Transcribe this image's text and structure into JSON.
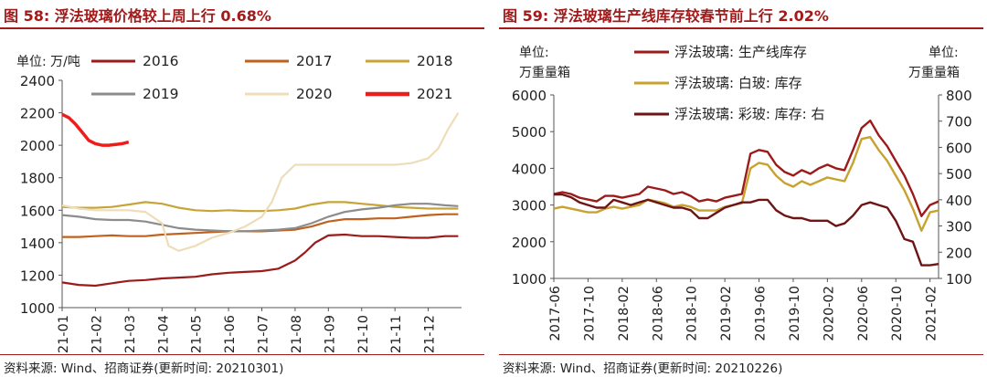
{
  "left": {
    "title": "图 58:  浮法玻璃价格较上周上行 0.68%",
    "unit_label": "单位: 万/吨",
    "source": "资料来源: Wind、招商证券(更新时间: 20210301)"
  },
  "right": {
    "title": "图 59:  浮法玻璃生产线库存较春节前上行 2.02%",
    "unit_left_line1": "单位:",
    "unit_left_line2": "万重量箱",
    "unit_right_line1": "单位:",
    "unit_right_line2": "万重量箱",
    "source": "资料来源: Wind、招商证券(更新时间: 20210226)"
  },
  "chart_data": [
    {
      "type": "line",
      "title": "图 58:  浮法玻璃价格较上周上行 0.68%",
      "ylabel": "单位: 万/吨",
      "ylim": [
        1000,
        2400
      ],
      "yticks": [
        1000,
        1200,
        1400,
        1600,
        1800,
        2000,
        2200,
        2400
      ],
      "x_tick_labels": [
        "2021-01",
        "2021-02",
        "2021-03",
        "2021-04",
        "2021-05",
        "2021-06",
        "2021-07",
        "2021-08",
        "2021-09",
        "2021-10",
        "2021-11",
        "2021-12"
      ],
      "x_domain": [
        1,
        13
      ],
      "grid": false,
      "legend_position": "top",
      "series": [
        {
          "name": "2016",
          "color": "#9b1b1b",
          "x": [
            1,
            1.5,
            2,
            2.5,
            3,
            3.5,
            4,
            4.5,
            5,
            5.5,
            6,
            6.5,
            7,
            7.5,
            8,
            8.3,
            8.6,
            9,
            9.5,
            10,
            10.5,
            11,
            11.5,
            12,
            12.5,
            12.9
          ],
          "y": [
            1155,
            1140,
            1135,
            1150,
            1165,
            1170,
            1180,
            1185,
            1190,
            1205,
            1215,
            1220,
            1225,
            1240,
            1290,
            1340,
            1400,
            1445,
            1450,
            1440,
            1440,
            1435,
            1430,
            1430,
            1440,
            1440
          ]
        },
        {
          "name": "2017",
          "color": "#c0621e",
          "x": [
            1,
            1.5,
            2,
            2.5,
            3,
            3.5,
            4,
            4.5,
            5,
            5.5,
            6,
            6.5,
            7,
            7.5,
            8,
            8.5,
            9,
            9.5,
            10,
            10.5,
            11,
            11.5,
            12,
            12.5,
            12.9
          ],
          "y": [
            1435,
            1435,
            1440,
            1445,
            1440,
            1440,
            1450,
            1455,
            1460,
            1465,
            1470,
            1470,
            1470,
            1475,
            1480,
            1500,
            1530,
            1545,
            1545,
            1550,
            1550,
            1560,
            1570,
            1575,
            1575
          ]
        },
        {
          "name": "2018",
          "color": "#c8a437",
          "x": [
            1,
            1.5,
            2,
            2.5,
            3,
            3.5,
            4,
            4.5,
            5,
            5.5,
            6,
            6.5,
            7,
            7.5,
            8,
            8.5,
            9,
            9.5,
            10,
            10.5,
            11,
            11.5,
            12,
            12.5,
            12.9
          ],
          "y": [
            1620,
            1615,
            1615,
            1620,
            1635,
            1650,
            1640,
            1615,
            1600,
            1595,
            1600,
            1595,
            1595,
            1600,
            1610,
            1635,
            1650,
            1650,
            1640,
            1630,
            1620,
            1615,
            1610,
            1610,
            1610
          ]
        },
        {
          "name": "2019",
          "color": "#8c8c8c",
          "x": [
            1,
            1.5,
            2,
            2.5,
            3,
            3.5,
            4,
            4.5,
            5,
            5.5,
            6,
            6.5,
            7,
            7.5,
            8,
            8.5,
            9,
            9.5,
            10,
            10.5,
            11,
            11.5,
            12,
            12.5,
            12.9
          ],
          "y": [
            1570,
            1560,
            1545,
            1540,
            1540,
            1530,
            1510,
            1490,
            1480,
            1475,
            1470,
            1470,
            1475,
            1480,
            1490,
            1520,
            1560,
            1590,
            1605,
            1615,
            1630,
            1640,
            1640,
            1630,
            1625
          ]
        },
        {
          "name": "2020",
          "color": "#efdcb8",
          "x": [
            1,
            1.5,
            2,
            2.5,
            3,
            3.5,
            4,
            4.2,
            4.5,
            5,
            5.5,
            6,
            6.5,
            7,
            7.3,
            7.6,
            8,
            8.5,
            9,
            9.5,
            10,
            10.5,
            11,
            11.5,
            12,
            12.3,
            12.6,
            12.9
          ],
          "y": [
            1630,
            1610,
            1600,
            1600,
            1600,
            1590,
            1520,
            1380,
            1350,
            1380,
            1430,
            1460,
            1500,
            1560,
            1650,
            1800,
            1880,
            1880,
            1880,
            1880,
            1880,
            1880,
            1880,
            1890,
            1920,
            1980,
            2100,
            2200
          ]
        },
        {
          "name": "2021",
          "color": "#ee1c1c",
          "x": [
            1,
            1.2,
            1.4,
            1.6,
            1.8,
            2,
            2.2,
            2.4,
            2.6,
            2.8,
            3
          ],
          "y": [
            2190,
            2170,
            2130,
            2080,
            2030,
            2010,
            2000,
            2000,
            2005,
            2010,
            2020
          ]
        }
      ]
    },
    {
      "type": "line",
      "title": "图 59:  浮法玻璃生产线库存较春节前上行 2.02%",
      "ylabel": "单位: 万重量箱",
      "y2label": "单位: 万重量箱",
      "ylim": [
        1000,
        6000
      ],
      "yticks": [
        1000,
        2000,
        3000,
        4000,
        5000,
        6000
      ],
      "y2lim": [
        100,
        800
      ],
      "y2ticks": [
        100,
        200,
        300,
        400,
        500,
        600,
        700,
        800
      ],
      "x_tick_labels": [
        "2017-06",
        "2017-10",
        "2018-02",
        "2018-06",
        "2018-10",
        "2019-02",
        "2019-06",
        "2019-10",
        "2020-02",
        "2020-06",
        "2020-10",
        "2021-02"
      ],
      "x_domain": [
        0,
        45
      ],
      "grid": false,
      "legend_position": "top",
      "series": [
        {
          "name": "浮法玻璃: 生产线库存",
          "axis": "left",
          "color": "#9b1b1b",
          "x": [
            0,
            1,
            2,
            3,
            4,
            5,
            6,
            7,
            8,
            9,
            10,
            11,
            12,
            13,
            14,
            15,
            16,
            17,
            18,
            19,
            20,
            21,
            22,
            23,
            24,
            25,
            26,
            27,
            28,
            29,
            30,
            31,
            32,
            33,
            34,
            35,
            36,
            37,
            38,
            39,
            40,
            41,
            42,
            43,
            44,
            45
          ],
          "y": [
            3300,
            3350,
            3300,
            3200,
            3150,
            3100,
            3250,
            3250,
            3200,
            3250,
            3300,
            3500,
            3450,
            3400,
            3300,
            3350,
            3250,
            3100,
            3150,
            3100,
            3200,
            3250,
            3300,
            4400,
            4500,
            4450,
            4100,
            3900,
            3800,
            3950,
            3850,
            4000,
            4100,
            4000,
            3950,
            4500,
            5100,
            5300,
            4900,
            4600,
            4200,
            3800,
            3300,
            2700,
            3000,
            3100
          ]
        },
        {
          "name": "浮法玻璃: 白玻: 库存",
          "axis": "left",
          "color": "#c8a22f",
          "x": [
            0,
            1,
            2,
            3,
            4,
            5,
            6,
            7,
            8,
            9,
            10,
            11,
            12,
            13,
            14,
            15,
            16,
            17,
            18,
            19,
            20,
            21,
            22,
            23,
            24,
            25,
            26,
            27,
            28,
            29,
            30,
            31,
            32,
            33,
            34,
            35,
            36,
            37,
            38,
            39,
            40,
            41,
            42,
            43,
            44,
            45
          ],
          "y": [
            2900,
            2950,
            2900,
            2850,
            2800,
            2800,
            2900,
            2950,
            2900,
            2950,
            3000,
            3150,
            3100,
            3050,
            2950,
            3000,
            2950,
            2850,
            2850,
            2850,
            2950,
            3000,
            3050,
            4000,
            4150,
            4100,
            3800,
            3600,
            3500,
            3650,
            3550,
            3650,
            3750,
            3700,
            3650,
            4150,
            4800,
            4850,
            4500,
            4200,
            3800,
            3400,
            2900,
            2300,
            2800,
            2850
          ]
        },
        {
          "name": "浮法玻璃: 彩玻: 库存: 右",
          "axis": "right",
          "color": "#6e1414",
          "x": [
            0,
            1,
            2,
            3,
            4,
            5,
            6,
            7,
            8,
            9,
            10,
            11,
            12,
            13,
            14,
            15,
            16,
            17,
            18,
            19,
            20,
            21,
            22,
            23,
            24,
            25,
            26,
            27,
            28,
            29,
            30,
            31,
            32,
            33,
            34,
            35,
            36,
            37,
            38,
            39,
            40,
            41,
            42,
            43,
            44,
            45
          ],
          "y": [
            420,
            420,
            410,
            390,
            380,
            370,
            370,
            400,
            390,
            380,
            390,
            400,
            390,
            380,
            370,
            370,
            360,
            330,
            330,
            350,
            370,
            380,
            390,
            390,
            400,
            400,
            360,
            340,
            330,
            330,
            320,
            320,
            320,
            300,
            310,
            340,
            380,
            390,
            380,
            370,
            320,
            250,
            240,
            150,
            150,
            155
          ]
        }
      ]
    }
  ]
}
